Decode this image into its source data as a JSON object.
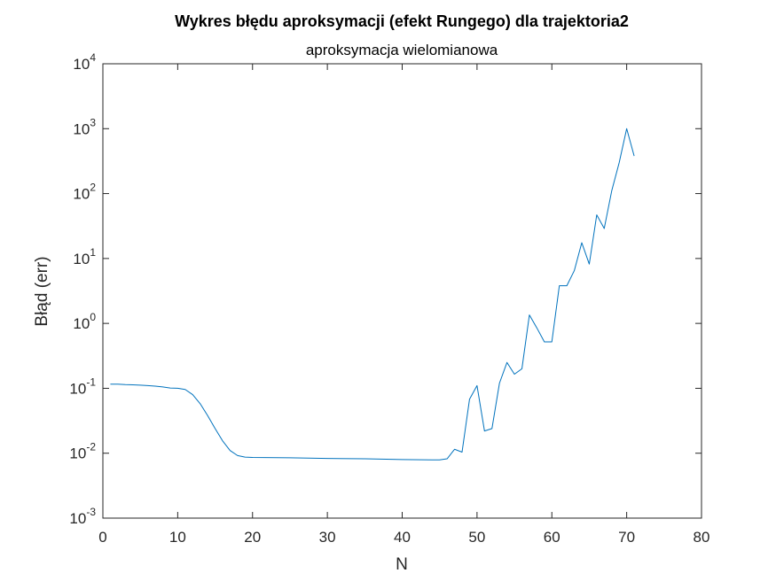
{
  "chart_data": {
    "type": "line",
    "title": "Wykres błędu aproksymacji (efekt Rungego) dla trajektoria2",
    "subtitle": "aproksymacja wielomianowa",
    "xlabel": "N",
    "ylabel": "Błąd (err)",
    "xlim": [
      0,
      80
    ],
    "ylim": [
      0.001,
      10000
    ],
    "yscale": "log",
    "xticks": [
      0,
      10,
      20,
      30,
      40,
      50,
      60,
      70,
      80
    ],
    "yticks": [
      {
        "base": "10",
        "exp": "-3"
      },
      {
        "base": "10",
        "exp": "-2"
      },
      {
        "base": "10",
        "exp": "-1"
      },
      {
        "base": "10",
        "exp": "0"
      },
      {
        "base": "10",
        "exp": "1"
      },
      {
        "base": "10",
        "exp": "2"
      },
      {
        "base": "10",
        "exp": "3"
      },
      {
        "base": "10",
        "exp": "4"
      }
    ],
    "grid": false,
    "line_color": "#0072BD",
    "x": [
      1,
      2,
      3,
      4,
      5,
      6,
      7,
      8,
      9,
      10,
      11,
      12,
      13,
      14,
      15,
      16,
      17,
      18,
      19,
      20,
      25,
      30,
      35,
      40,
      44,
      45,
      46,
      47,
      48,
      49,
      50,
      51,
      52,
      53,
      54,
      55,
      56,
      57,
      58,
      59,
      60,
      61,
      62,
      63,
      64,
      65,
      66,
      67,
      68,
      69,
      70,
      71
    ],
    "y": [
      0.116,
      0.116,
      0.114,
      0.113,
      0.112,
      0.11,
      0.108,
      0.105,
      0.101,
      0.1,
      0.096,
      0.08,
      0.058,
      0.038,
      0.024,
      0.0155,
      0.011,
      0.0092,
      0.0087,
      0.0086,
      0.0085,
      0.0083,
      0.0082,
      0.008,
      0.0079,
      0.0079,
      0.0082,
      0.0115,
      0.0104,
      0.068,
      0.11,
      0.022,
      0.024,
      0.12,
      0.25,
      0.165,
      0.2,
      1.35,
      0.85,
      0.52,
      0.52,
      3.8,
      3.8,
      6.5,
      17.5,
      8.2,
      47,
      29,
      110,
      300,
      1000,
      380
    ]
  }
}
